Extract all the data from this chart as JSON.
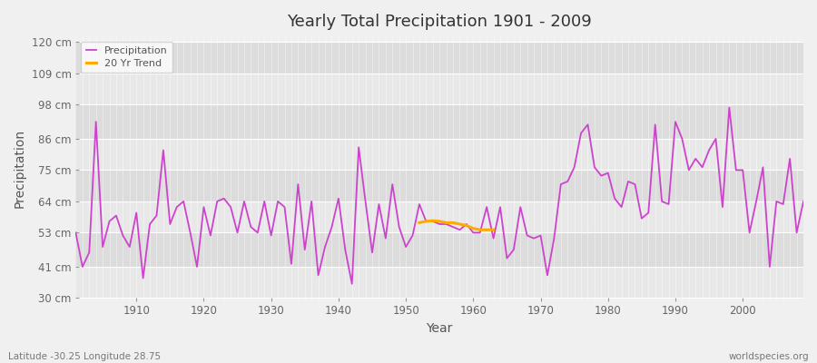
{
  "title": "Yearly Total Precipitation 1901 - 2009",
  "xlabel": "Year",
  "ylabel": "Precipitation",
  "subtitle": "Latitude -30.25 Longitude 28.75",
  "watermark": "worldspecies.org",
  "yticks": [
    30,
    41,
    53,
    64,
    75,
    86,
    98,
    109,
    120
  ],
  "ytick_labels": [
    "30 cm",
    "41 cm",
    "53 cm",
    "64 cm",
    "75 cm",
    "86 cm",
    "98 cm",
    "109 cm",
    "120 cm"
  ],
  "xlim": [
    1901,
    2009
  ],
  "ylim": [
    29,
    122
  ],
  "bg_color": "#f0f0f0",
  "plot_bg_color": "#f0f0f0",
  "band_colors": [
    "#e8e8e8",
    "#dcdcdc"
  ],
  "precip_color": "#cc44cc",
  "trend_color": "#ffaa00",
  "years": [
    1901,
    1902,
    1903,
    1904,
    1905,
    1906,
    1907,
    1908,
    1909,
    1910,
    1911,
    1912,
    1913,
    1914,
    1915,
    1916,
    1917,
    1918,
    1919,
    1920,
    1921,
    1922,
    1923,
    1924,
    1925,
    1926,
    1927,
    1928,
    1929,
    1930,
    1931,
    1932,
    1933,
    1934,
    1935,
    1936,
    1937,
    1938,
    1939,
    1940,
    1941,
    1942,
    1943,
    1944,
    1945,
    1946,
    1947,
    1948,
    1949,
    1950,
    1951,
    1952,
    1953,
    1954,
    1955,
    1956,
    1957,
    1958,
    1959,
    1960,
    1961,
    1962,
    1963,
    1964,
    1965,
    1966,
    1967,
    1968,
    1969,
    1970,
    1971,
    1972,
    1973,
    1974,
    1975,
    1976,
    1977,
    1978,
    1979,
    1980,
    1981,
    1982,
    1983,
    1984,
    1985,
    1986,
    1987,
    1988,
    1989,
    1990,
    1991,
    1992,
    1993,
    1994,
    1995,
    1996,
    1997,
    1998,
    1999,
    2000,
    2001,
    2002,
    2003,
    2004,
    2005,
    2006,
    2007,
    2008,
    2009
  ],
  "precip": [
    53,
    41,
    46,
    92,
    48,
    57,
    59,
    52,
    48,
    60,
    37,
    56,
    59,
    82,
    56,
    62,
    64,
    53,
    41,
    62,
    52,
    64,
    65,
    62,
    53,
    64,
    55,
    53,
    64,
    52,
    64,
    62,
    42,
    70,
    47,
    64,
    38,
    48,
    55,
    65,
    47,
    35,
    83,
    64,
    46,
    63,
    51,
    70,
    55,
    48,
    52,
    63,
    57,
    57,
    56,
    56,
    55,
    54,
    56,
    53,
    53,
    62,
    51,
    62,
    44,
    47,
    62,
    52,
    51,
    52,
    38,
    51,
    70,
    71,
    76,
    88,
    91,
    76,
    73,
    74,
    65,
    62,
    71,
    70,
    58,
    60,
    91,
    64,
    63,
    92,
    86,
    75,
    79,
    76,
    82,
    86,
    62,
    97,
    75,
    75,
    53,
    64,
    76,
    41,
    64,
    63,
    79,
    53,
    64
  ],
  "trend_years": [
    1952,
    1953,
    1954,
    1955,
    1956,
    1957,
    1958,
    1959,
    1960,
    1961,
    1962,
    1963
  ],
  "trend_values": [
    56.5,
    57.0,
    57.2,
    57.0,
    56.5,
    56.5,
    56.0,
    55.5,
    54.5,
    54.0,
    54.0,
    54.0
  ],
  "xticks": [
    1910,
    1920,
    1930,
    1940,
    1950,
    1960,
    1970,
    1980,
    1990,
    2000
  ]
}
